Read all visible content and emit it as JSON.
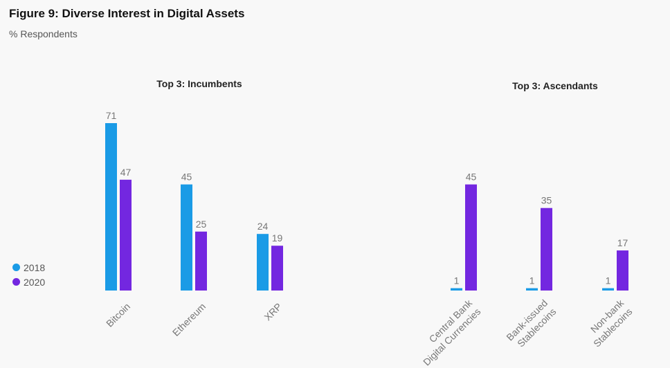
{
  "figure": {
    "title": "Figure 9: Diverse Interest in Digital Assets",
    "subtitle": "% Respondents"
  },
  "legend": [
    {
      "label": "2018",
      "color": "#1a9be6"
    },
    {
      "label": "2020",
      "color": "#7327e0"
    }
  ],
  "chart_data": [
    {
      "type": "bar",
      "title": "Top 3: Incumbents",
      "categories": [
        [
          "Bitcoin"
        ],
        [
          "Ethereum"
        ],
        [
          "XRP"
        ]
      ],
      "series": [
        {
          "name": "2018",
          "values": [
            71,
            45,
            24
          ],
          "color": "#1a9be6"
        },
        {
          "name": "2020",
          "values": [
            47,
            25,
            19
          ],
          "color": "#7327e0"
        }
      ],
      "ylabel": "% Respondents",
      "ylim": [
        0,
        71
      ],
      "grid": false,
      "legend": "left"
    },
    {
      "type": "bar",
      "title": "Top 3: Ascendants",
      "categories": [
        [
          "Central Bank",
          "Digital Currencies"
        ],
        [
          "Bank-issued",
          "Stablecoins"
        ],
        [
          "Non-bank",
          "Stablecoins"
        ]
      ],
      "series": [
        {
          "name": "2018",
          "values": [
            1,
            1,
            1
          ],
          "color": "#1a9be6"
        },
        {
          "name": "2020",
          "values": [
            45,
            35,
            17
          ],
          "color": "#7327e0"
        }
      ],
      "ylabel": "% Respondents",
      "ylim": [
        0,
        71
      ],
      "grid": false,
      "legend": "left"
    }
  ]
}
